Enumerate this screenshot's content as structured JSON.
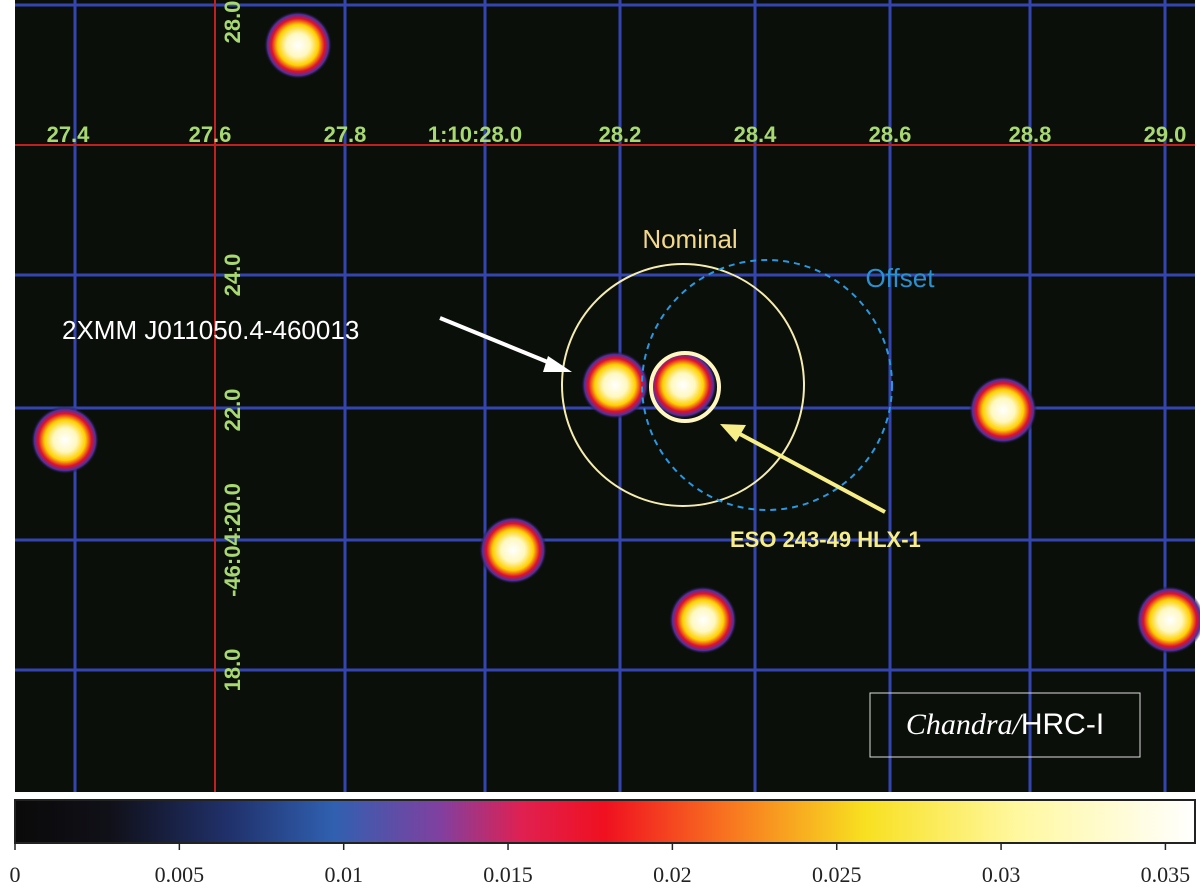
{
  "ra_ticks": [
    "27.4",
    "27.6",
    "27.8",
    "1:10:28.0",
    "28.2",
    "28.4",
    "28.6",
    "28.8",
    "29.0"
  ],
  "dec_ticks": [
    "28.0",
    "24.0",
    "22.0",
    "-46:04:20.0",
    "18.0"
  ],
  "annotations": {
    "nominal": "Nominal",
    "offset": "Offset",
    "xmm_source": "2XMM J011050.4-460013",
    "hlx": "ESO 243-49 HLX-1"
  },
  "instrument": {
    "telescope": "Chandra/",
    "detector": "HRC-I"
  },
  "colorbar": {
    "range": [
      0,
      0.0359
    ],
    "ticks": [
      0,
      0.005,
      0.01,
      0.015,
      0.02,
      0.025,
      0.03,
      0.035
    ]
  }
}
